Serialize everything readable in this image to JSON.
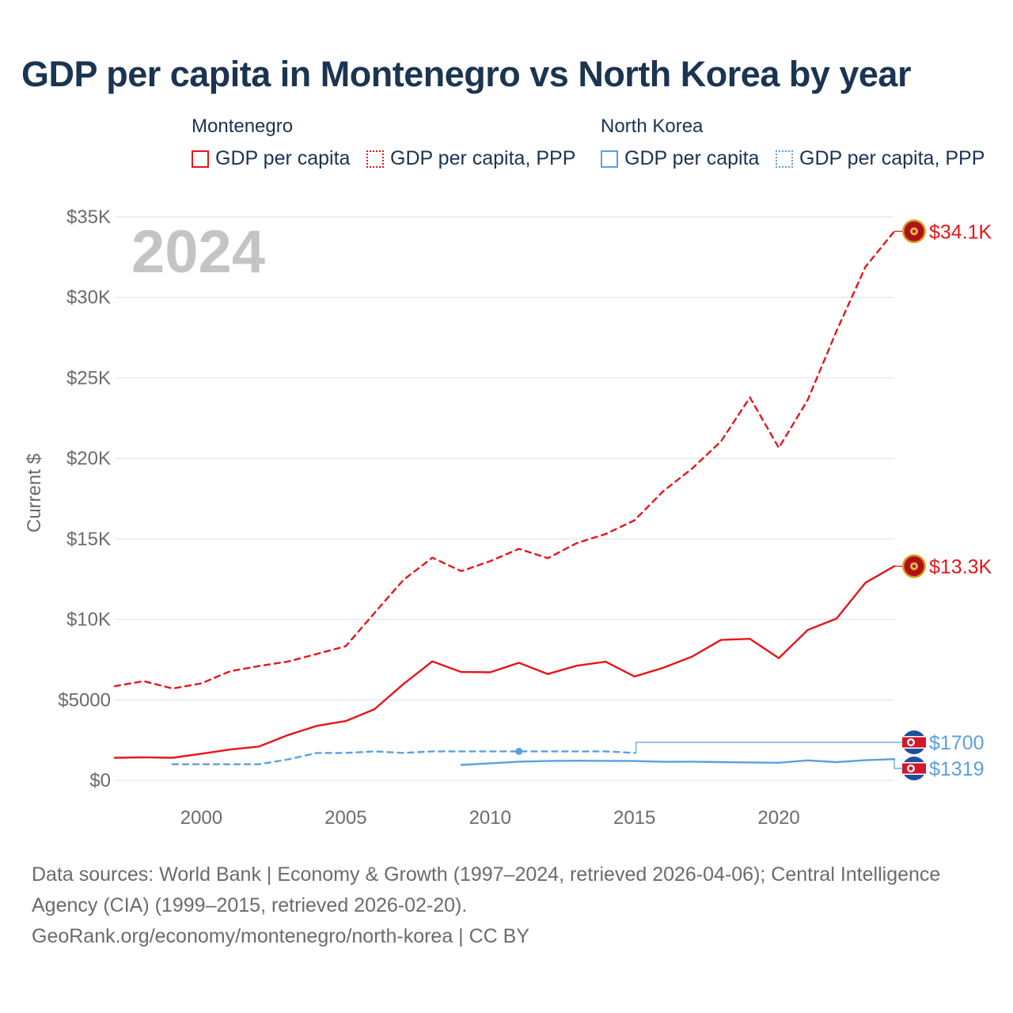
{
  "page": {
    "title": "GDP per capita in Montenegro vs North Korea by year",
    "footer_line1": "Data sources: World Bank | Economy & Growth (1997–2024, retrieved 2026-04-06); Central Intelligence",
    "footer_line2": "Agency (CIA) (1999–2015, retrieved 2026-02-20).",
    "footer_line3": "GeoRank.org/economy/montenegro/north-korea | CC BY"
  },
  "legend": {
    "groups": [
      {
        "name": "Montenegro",
        "items": [
          "GDP per capita",
          "GDP per capita, PPP"
        ],
        "color": "#e8141a"
      },
      {
        "name": "North Korea",
        "items": [
          "GDP per capita",
          "GDP per capita, PPP"
        ],
        "color": "#5b9fe0"
      }
    ]
  },
  "chart_data": {
    "type": "line",
    "year_label": "2024",
    "ylabel": "Current $",
    "xlim": [
      1997,
      2024
    ],
    "ylim": [
      0,
      35000
    ],
    "yticks": [
      0,
      5000,
      10000,
      15000,
      20000,
      25000,
      30000,
      35000
    ],
    "ytick_labels": [
      "$0",
      "$5000",
      "$10K",
      "$15K",
      "$20K",
      "$25K",
      "$30K",
      "$35K"
    ],
    "xticks": [
      2000,
      2005,
      2010,
      2015,
      2020
    ],
    "xtick_labels": [
      "2000",
      "2005",
      "2010",
      "2015",
      "2020"
    ],
    "grid": true,
    "series": [
      {
        "name": "Montenegro GDP per capita",
        "color": "#e8141a",
        "dash": "solid",
        "x": [
          1997,
          1998,
          1999,
          2000,
          2001,
          2002,
          2003,
          2004,
          2005,
          2006,
          2007,
          2008,
          2009,
          2010,
          2011,
          2012,
          2013,
          2014,
          2015,
          2016,
          2017,
          2018,
          2019,
          2020,
          2021,
          2022,
          2023,
          2024
        ],
        "values": [
          1400,
          1430,
          1400,
          1650,
          1910,
          2100,
          2810,
          3380,
          3680,
          4420,
          5980,
          7390,
          6730,
          6710,
          7300,
          6600,
          7120,
          7370,
          6450,
          6990,
          7690,
          8720,
          8790,
          7590,
          9340,
          10050,
          12270,
          13300
        ],
        "end_label": "$13.3K"
      },
      {
        "name": "Montenegro GDP per capita, PPP",
        "color": "#e8141a",
        "dash": "dashed",
        "x": [
          1997,
          1998,
          1999,
          2000,
          2001,
          2002,
          2003,
          2004,
          2005,
          2006,
          2007,
          2008,
          2009,
          2010,
          2011,
          2012,
          2013,
          2014,
          2015,
          2016,
          2017,
          2018,
          2019,
          2020,
          2021,
          2022,
          2023,
          2024
        ],
        "values": [
          5850,
          6160,
          5700,
          6020,
          6780,
          7100,
          7380,
          7850,
          8330,
          10400,
          12450,
          13830,
          12990,
          13610,
          14380,
          13800,
          14730,
          15300,
          16150,
          17960,
          19370,
          21060,
          23780,
          20650,
          23630,
          27900,
          31890,
          34100
        ],
        "end_label": "$34.1K"
      },
      {
        "name": "North Korea GDP per capita",
        "color": "#5b9fe0",
        "dash": "solid",
        "x": [
          2009,
          2010,
          2011,
          2012,
          2013,
          2014,
          2015,
          2016,
          2017,
          2018,
          2019,
          2020,
          2021,
          2022,
          2023,
          2024
        ],
        "values": [
          960,
          1050,
          1160,
          1200,
          1220,
          1210,
          1200,
          1150,
          1160,
          1130,
          1110,
          1090,
          1240,
          1130,
          1250,
          1319
        ],
        "end_label": "$1319"
      },
      {
        "name": "North Korea GDP per capita, PPP",
        "color": "#5b9fe0",
        "dash": "dashed",
        "x": [
          1999,
          2000,
          2001,
          2002,
          2003,
          2004,
          2005,
          2006,
          2007,
          2008,
          2009,
          2010,
          2011,
          2012,
          2013,
          2014,
          2015
        ],
        "values": [
          1000,
          1000,
          1000,
          1000,
          1300,
          1700,
          1700,
          1800,
          1700,
          1800,
          1800,
          1800,
          1800,
          1800,
          1800,
          1800,
          1700
        ],
        "marker_year": 2011,
        "end_label": "$1700"
      }
    ]
  }
}
